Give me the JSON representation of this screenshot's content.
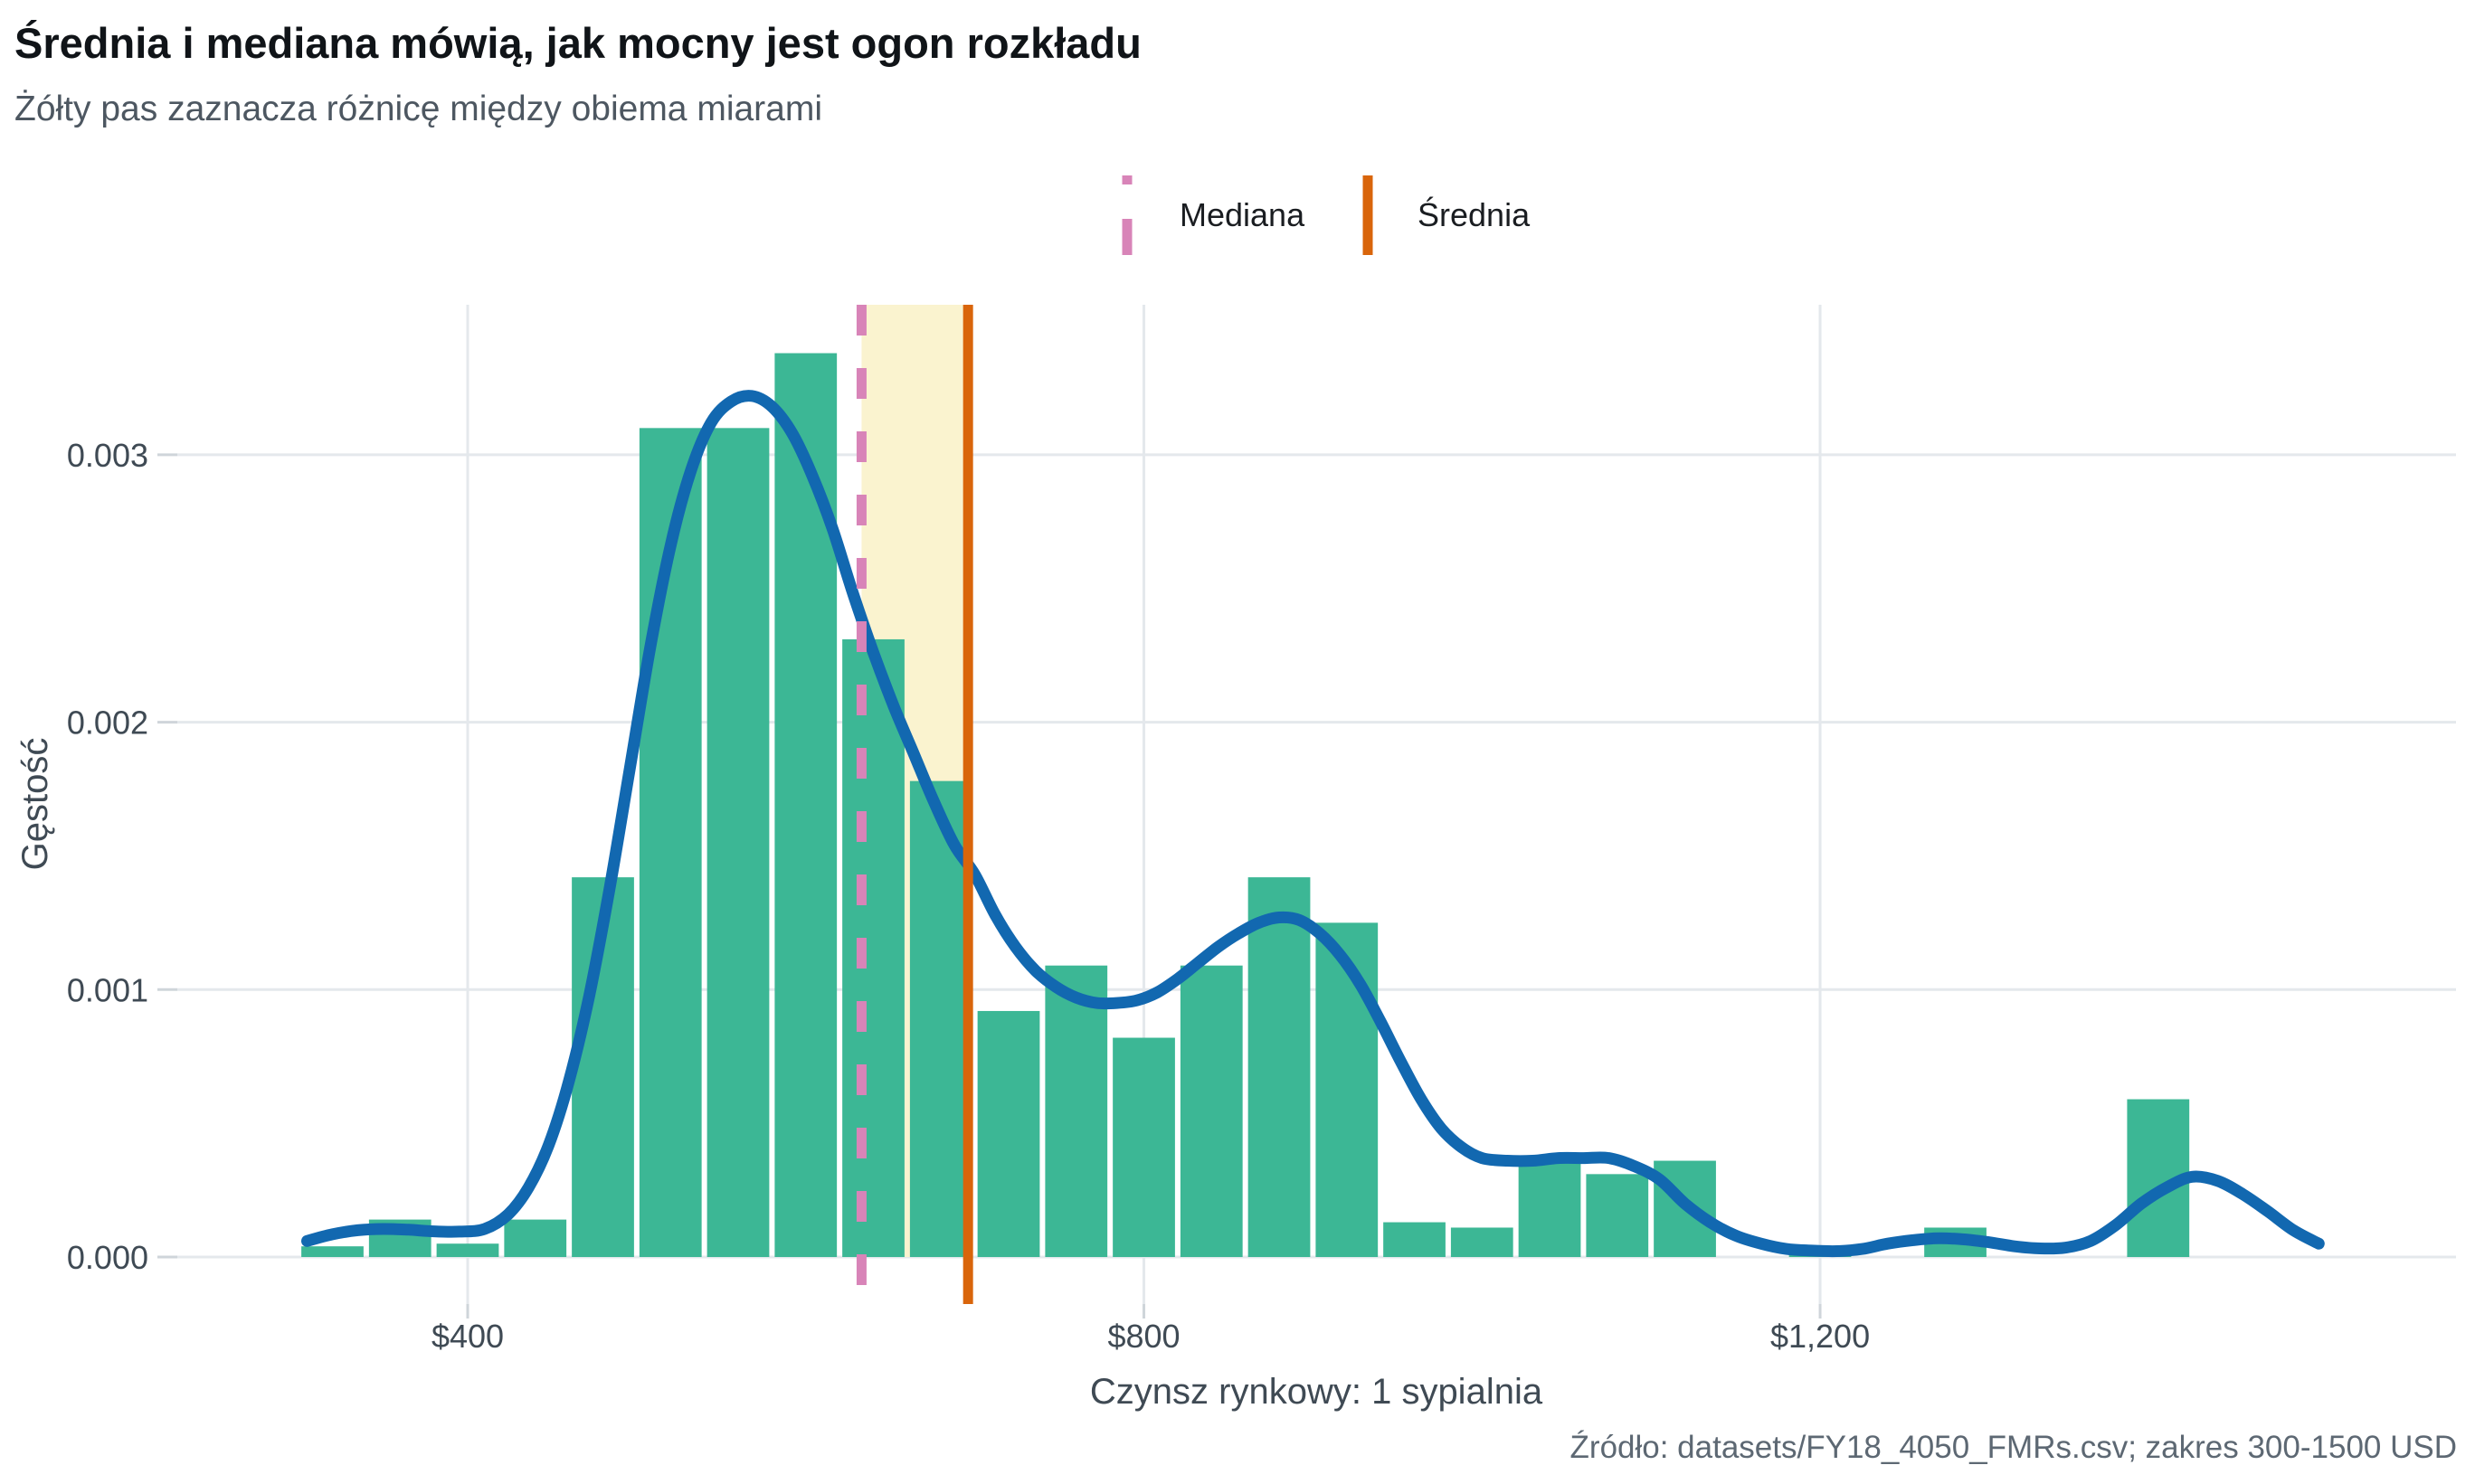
{
  "header": {
    "title": "Średnia i mediana mówią, jak mocny jest ogon rozkładu",
    "subtitle": "Żółty pas zaznacza różnicę między obiema miarami"
  },
  "caption": "Źródło: datasets/FY18_4050_FMRs.csv; zakres 300-1500 USD",
  "legend": {
    "position": "top-center",
    "items": [
      {
        "label": "Mediana",
        "line_style": "dashed",
        "color": "#D884B8"
      },
      {
        "label": "Średnia",
        "line_style": "solid",
        "color": "#D9650B"
      }
    ]
  },
  "chart_data": {
    "type": "bar",
    "subtype": "histogram-with-density",
    "title": "Średnia i mediana mówią, jak mocny jest ogon rozkładu",
    "xlabel": "Czynsz rynkowy: 1 sypialnia",
    "ylabel": "Gęstość",
    "xlim": [
      228,
      1572
    ],
    "ylim": [
      0,
      0.00356
    ],
    "grid": true,
    "bin_width": 40,
    "x_ticks": [
      {
        "value": 400,
        "label": "$400"
      },
      {
        "value": 800,
        "label": "$800"
      },
      {
        "value": 1200,
        "label": "$1,200"
      }
    ],
    "y_ticks": [
      {
        "value": 0.0,
        "label": "0.000"
      },
      {
        "value": 0.001,
        "label": "0.001"
      },
      {
        "value": 0.002,
        "label": "0.002"
      },
      {
        "value": 0.003,
        "label": "0.003"
      }
    ],
    "bars": [
      {
        "from": 300,
        "to": 340,
        "density": 4e-05
      },
      {
        "from": 340,
        "to": 380,
        "density": 0.00014
      },
      {
        "from": 380,
        "to": 420,
        "density": 5e-05
      },
      {
        "from": 420,
        "to": 460,
        "density": 0.00014
      },
      {
        "from": 460,
        "to": 500,
        "density": 0.00142
      },
      {
        "from": 500,
        "to": 540,
        "density": 0.0031
      },
      {
        "from": 540,
        "to": 580,
        "density": 0.0031
      },
      {
        "from": 580,
        "to": 620,
        "density": 0.00338
      },
      {
        "from": 620,
        "to": 660,
        "density": 0.00231
      },
      {
        "from": 660,
        "to": 700,
        "density": 0.00178
      },
      {
        "from": 700,
        "to": 740,
        "density": 0.00092
      },
      {
        "from": 740,
        "to": 780,
        "density": 0.00109
      },
      {
        "from": 780,
        "to": 820,
        "density": 0.00082
      },
      {
        "from": 820,
        "to": 860,
        "density": 0.00109
      },
      {
        "from": 860,
        "to": 900,
        "density": 0.00142
      },
      {
        "from": 900,
        "to": 940,
        "density": 0.00125
      },
      {
        "from": 940,
        "to": 980,
        "density": 0.00013
      },
      {
        "from": 980,
        "to": 1020,
        "density": 0.00011
      },
      {
        "from": 1020,
        "to": 1060,
        "density": 0.00038
      },
      {
        "from": 1060,
        "to": 1100,
        "density": 0.00031
      },
      {
        "from": 1100,
        "to": 1140,
        "density": 0.00036
      },
      {
        "from": 1180,
        "to": 1220,
        "density": 1e-05
      },
      {
        "from": 1260,
        "to": 1300,
        "density": 0.00011
      },
      {
        "from": 1380,
        "to": 1420,
        "density": 0.00059
      }
    ],
    "median": 633,
    "mean": 696,
    "highlight_band": {
      "from": 633,
      "to": 696,
      "color": "#FAF3CF"
    },
    "density_curve": [
      [
        305,
        6e-05
      ],
      [
        320,
        8.5e-05
      ],
      [
        335,
        0.0001
      ],
      [
        350,
        0.000105
      ],
      [
        365,
        0.000102
      ],
      [
        380,
        9.6e-05
      ],
      [
        395,
        9.5e-05
      ],
      [
        410,
        0.000105
      ],
      [
        424,
        0.00016
      ],
      [
        436,
        0.00026
      ],
      [
        448,
        0.00042
      ],
      [
        460,
        0.00066
      ],
      [
        472,
        0.00098
      ],
      [
        484,
        0.00138
      ],
      [
        496,
        0.00183
      ],
      [
        508,
        0.00228
      ],
      [
        520,
        0.00266
      ],
      [
        532,
        0.00294
      ],
      [
        544,
        0.00312
      ],
      [
        556,
        0.0032
      ],
      [
        568,
        0.00322
      ],
      [
        580,
        0.00318
      ],
      [
        592,
        0.00308
      ],
      [
        604,
        0.00292
      ],
      [
        616,
        0.00272
      ],
      [
        628,
        0.00248
      ],
      [
        640,
        0.00226
      ],
      [
        652,
        0.00206
      ],
      [
        664,
        0.00188
      ],
      [
        676,
        0.0017
      ],
      [
        688,
        0.00154
      ],
      [
        700,
        0.00143
      ],
      [
        712,
        0.00128
      ],
      [
        724,
        0.00116
      ],
      [
        736,
        0.00107
      ],
      [
        748,
        0.00101
      ],
      [
        760,
        0.00097
      ],
      [
        772,
        0.00095
      ],
      [
        784,
        0.00095
      ],
      [
        796,
        0.00096
      ],
      [
        808,
        0.00099
      ],
      [
        820,
        0.00104
      ],
      [
        832,
        0.0011
      ],
      [
        844,
        0.00116
      ],
      [
        856,
        0.00121
      ],
      [
        868,
        0.00125
      ],
      [
        880,
        0.00127
      ],
      [
        892,
        0.00126
      ],
      [
        904,
        0.00121
      ],
      [
        916,
        0.00113
      ],
      [
        928,
        0.00102
      ],
      [
        940,
        0.00088
      ],
      [
        952,
        0.00073
      ],
      [
        964,
        0.00059
      ],
      [
        976,
        0.00048
      ],
      [
        988,
        0.00041
      ],
      [
        1000,
        0.00037
      ],
      [
        1015,
        0.00036
      ],
      [
        1030,
        0.00036
      ],
      [
        1045,
        0.00037
      ],
      [
        1060,
        0.00037
      ],
      [
        1075,
        0.00037
      ],
      [
        1090,
        0.00034
      ],
      [
        1105,
        0.00029
      ],
      [
        1120,
        0.0002
      ],
      [
        1135,
        0.00013
      ],
      [
        1150,
        8e-05
      ],
      [
        1165,
        5e-05
      ],
      [
        1180,
        3e-05
      ],
      [
        1195,
        2.4e-05
      ],
      [
        1210,
        2.2e-05
      ],
      [
        1225,
        3e-05
      ],
      [
        1240,
        5e-05
      ],
      [
        1255,
        6.3e-05
      ],
      [
        1270,
        7e-05
      ],
      [
        1285,
        6.6e-05
      ],
      [
        1300,
        5.5e-05
      ],
      [
        1315,
        4e-05
      ],
      [
        1330,
        3.2e-05
      ],
      [
        1345,
        3.5e-05
      ],
      [
        1360,
        6e-05
      ],
      [
        1375,
        0.00012
      ],
      [
        1390,
        0.0002
      ],
      [
        1405,
        0.00026
      ],
      [
        1420,
        0.0003
      ],
      [
        1435,
        0.000285
      ],
      [
        1450,
        0.000235
      ],
      [
        1465,
        0.00017
      ],
      [
        1480,
        0.0001
      ],
      [
        1495,
        5e-05
      ]
    ],
    "colors": {
      "bar_fill": "#3CB795",
      "bar_gap": "#FFFFFF",
      "density_line": "#1268B0",
      "median_line": "#D884B8",
      "mean_line": "#D9650B",
      "band_fill": "#FAF3CF",
      "grid_line": "#E4E8EC",
      "tick_mark": "#CFD5DA",
      "axis_text": "#3F4A54",
      "background": "#FFFFFF"
    }
  }
}
